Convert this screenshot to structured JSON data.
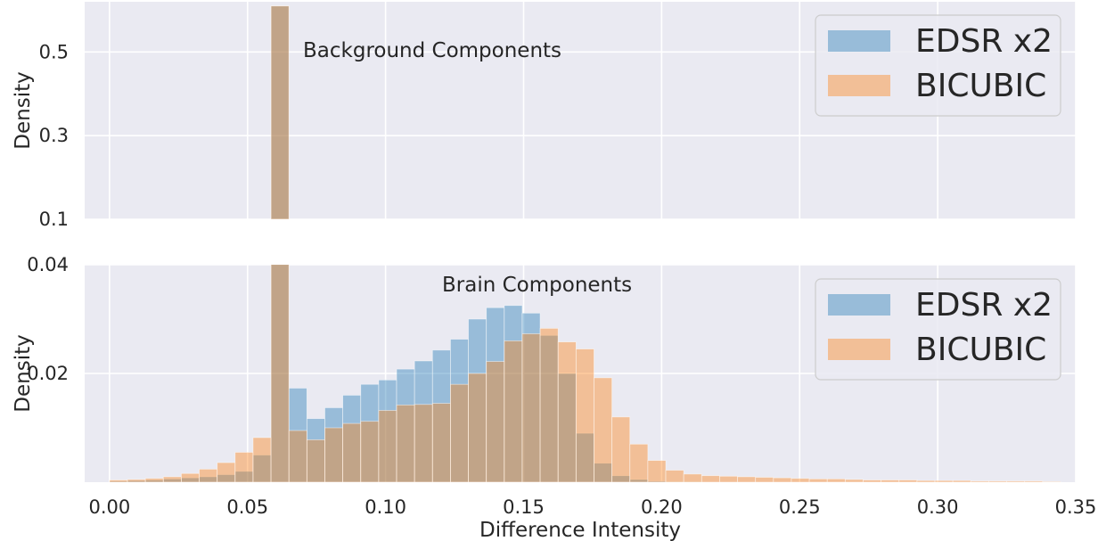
{
  "colors": {
    "panel_bg": "#eaeaf2",
    "grid": "#ffffff",
    "edsr": "#1f77b4",
    "bicubic": "#ff7f0e",
    "overlap": "#b89a82"
  },
  "chart_data": {
    "type": "bar",
    "layout_description": "Two stacked panels of overlaid semi-transparent density histograms (broken y-axis) sharing one x-axis",
    "xlabel": "Difference Intensity",
    "xlim": [
      -0.009,
      0.35
    ],
    "xticks": [
      "0.00",
      "0.05",
      "0.10",
      "0.15",
      "0.20",
      "0.25",
      "0.30",
      "0.35"
    ],
    "bin_width": 0.0065,
    "bin_left_edges": [
      0.0,
      0.0065,
      0.013,
      0.0195,
      0.026,
      0.0325,
      0.039,
      0.0455,
      0.052,
      0.0585,
      0.065,
      0.0715,
      0.078,
      0.0845,
      0.091,
      0.0975,
      0.104,
      0.1105,
      0.117,
      0.1235,
      0.13,
      0.1365,
      0.143,
      0.1495,
      0.156,
      0.1625,
      0.169,
      0.1755,
      0.182,
      0.1885,
      0.195,
      0.2015,
      0.208,
      0.2145,
      0.221,
      0.2275,
      0.234,
      0.2405,
      0.247,
      0.2535,
      0.26,
      0.2665,
      0.273,
      0.2795,
      0.286,
      0.2925,
      0.299,
      0.3055,
      0.312,
      0.3185,
      0.325,
      0.3315,
      0.338
    ],
    "series": [
      {
        "name": "EDSR x2",
        "values": [
          0.0002,
          0.0003,
          0.0004,
          0.0006,
          0.0008,
          0.001,
          0.0014,
          0.002,
          0.005,
          0.61,
          0.0173,
          0.0117,
          0.0137,
          0.016,
          0.018,
          0.0188,
          0.0208,
          0.0223,
          0.0243,
          0.0263,
          0.03,
          0.0321,
          0.0325,
          0.0311,
          0.027,
          0.02,
          0.009,
          0.0035,
          0.0012,
          0.0005,
          0.0002,
          0.0001,
          0.0001,
          0.0,
          0.0,
          0.0,
          0.0,
          0.0,
          0.0,
          0.0,
          0.0,
          0.0,
          0.0,
          0.0,
          0.0,
          0.0,
          0.0,
          0.0,
          0.0,
          0.0,
          0.0,
          0.0,
          0.0
        ]
      },
      {
        "name": "BICUBIC",
        "values": [
          0.0004,
          0.0005,
          0.0007,
          0.001,
          0.0016,
          0.0024,
          0.0036,
          0.0055,
          0.0082,
          0.61,
          0.0095,
          0.0078,
          0.01,
          0.0108,
          0.0112,
          0.0132,
          0.0142,
          0.0143,
          0.0145,
          0.018,
          0.02,
          0.0222,
          0.026,
          0.0273,
          0.0283,
          0.0258,
          0.0245,
          0.0192,
          0.012,
          0.007,
          0.004,
          0.0022,
          0.0015,
          0.0012,
          0.0011,
          0.001,
          0.0009,
          0.0008,
          0.0007,
          0.0006,
          0.0006,
          0.0005,
          0.0004,
          0.0004,
          0.0004,
          0.0003,
          0.0003,
          0.0003,
          0.0002,
          0.0002,
          0.0002,
          0.0002,
          0.0001
        ]
      }
    ],
    "panels": [
      {
        "id": "top",
        "ylabel": "Density",
        "ylim": [
          0.1,
          0.62
        ],
        "yticks": [
          0.1,
          0.3,
          0.5
        ],
        "ytick_labels": [
          "0.1",
          "0.3",
          "0.5"
        ],
        "annotation": "Background Components",
        "legend": [
          "EDSR x2",
          "BICUBIC"
        ],
        "legend_position": "top-right",
        "grid": true
      },
      {
        "id": "bottom",
        "ylabel": "Density",
        "ylim": [
          0.0,
          0.04
        ],
        "yticks": [
          0.02,
          0.04
        ],
        "ytick_labels": [
          "0.02",
          "0.04"
        ],
        "annotation": "Brain Components",
        "legend": [
          "EDSR x2",
          "BICUBIC"
        ],
        "legend_position": "top-right",
        "grid": true
      }
    ]
  }
}
